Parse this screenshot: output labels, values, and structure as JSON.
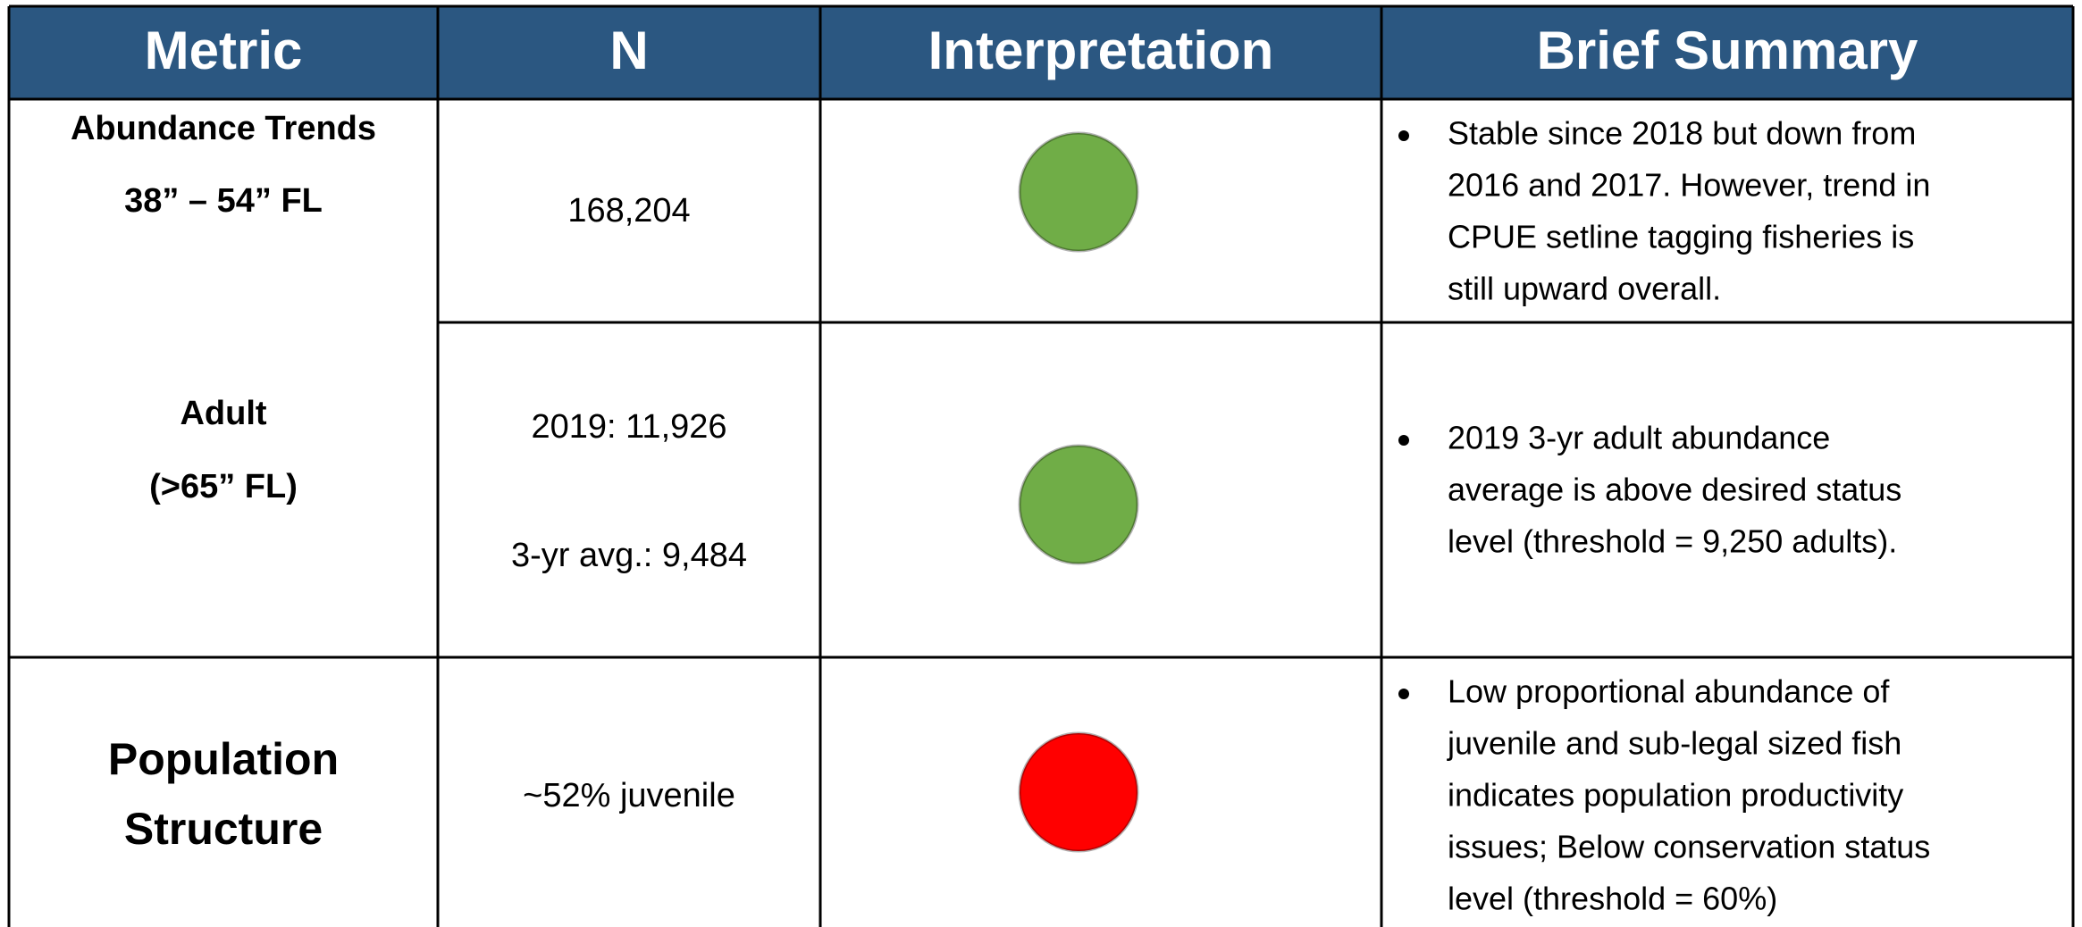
{
  "header": [
    "Metric",
    "N",
    "Interpretation",
    "Brief Summary"
  ],
  "rows": [
    {
      "metric": [
        "Abundance Trends",
        "38” – 54” FL"
      ],
      "n": [
        "168,204"
      ],
      "status_color": "#70ad47",
      "summary": [
        "Stable since 2018 but down from",
        "2016 and 2017. However, trend in",
        "CPUE setline tagging fisheries is",
        "still upward overall."
      ]
    },
    {
      "metric": [
        "Adult",
        "(>65” FL)"
      ],
      "n": [
        "2019: 11,926",
        "3-yr avg.: 9,484"
      ],
      "status_color": "#70ad47",
      "summary": [
        "2019 3-yr adult abundance",
        "average is above desired status",
        "level (threshold = 9,250 adults)."
      ]
    },
    {
      "metric": [
        "Population",
        "Structure"
      ],
      "n": [
        "~52% juvenile"
      ],
      "status_color": "#ff0000",
      "summary": [
        "Low proportional abundance of",
        "juvenile and sub-legal sized fish",
        "indicates population productivity",
        "issues; Below conservation status",
        "level (threshold = 60%)"
      ]
    }
  ]
}
